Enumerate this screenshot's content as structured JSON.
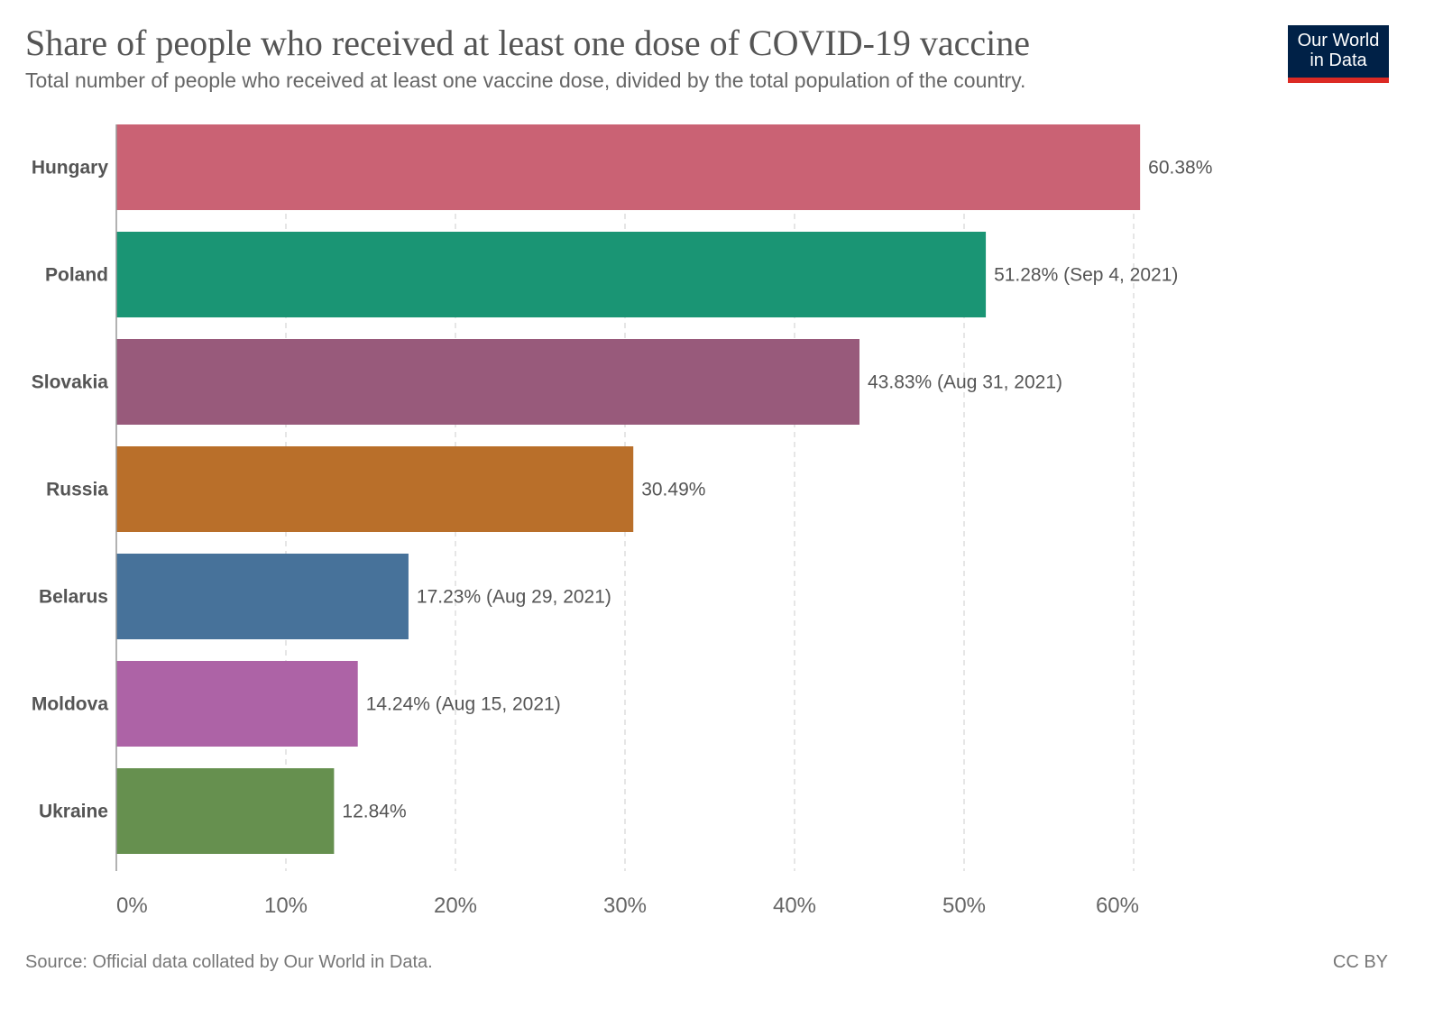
{
  "header": {
    "title": "Share of people who received at least one dose of COVID-19 vaccine",
    "subtitle": "Total number of people who received at least one vaccine dose, divided by the total population of the country.",
    "logo_line1": "Our World",
    "logo_line2": "in Data"
  },
  "footer": {
    "source": "Source: Official data collated by Our World in Data.",
    "license": "CC BY"
  },
  "chart_data": {
    "type": "bar",
    "orientation": "horizontal",
    "title": "Share of people who received at least one dose of COVID-19 vaccine",
    "xlabel": "",
    "ylabel": "",
    "xlim": [
      0,
      60
    ],
    "grid": true,
    "categories": [
      "Hungary",
      "Poland",
      "Slovakia",
      "Russia",
      "Belarus",
      "Moldova",
      "Ukraine"
    ],
    "values": [
      60.38,
      51.28,
      43.83,
      30.49,
      17.23,
      14.24,
      12.84
    ],
    "labels": [
      "60.38%",
      "51.28% (Sep 4, 2021)",
      "43.83% (Aug 31, 2021)",
      "30.49%",
      "17.23% (Aug 29, 2021)",
      "14.24% (Aug 15, 2021)",
      "12.84%"
    ],
    "colors": [
      "#ca6274",
      "#1a9574",
      "#985a7b",
      "#b96f2a",
      "#47729a",
      "#ad63a6",
      "#66904f"
    ],
    "ticks": [
      0,
      10,
      20,
      30,
      40,
      50,
      60
    ],
    "tick_labels": [
      "0%",
      "10%",
      "20%",
      "30%",
      "40%",
      "50%",
      "60%"
    ]
  }
}
